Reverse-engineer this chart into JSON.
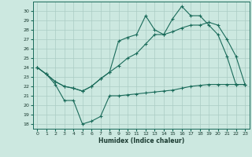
{
  "xlabel": "Humidex (Indice chaleur)",
  "bg_color": "#cce8e0",
  "grid_color": "#aaccc4",
  "line_color": "#1a6b5a",
  "xlim": [
    -0.5,
    23.5
  ],
  "ylim": [
    17.5,
    31.0
  ],
  "xticks": [
    0,
    1,
    2,
    3,
    4,
    5,
    6,
    7,
    8,
    9,
    10,
    11,
    12,
    13,
    14,
    15,
    16,
    17,
    18,
    19,
    20,
    21,
    22,
    23
  ],
  "yticks": [
    18,
    19,
    20,
    21,
    22,
    23,
    24,
    25,
    26,
    27,
    28,
    29,
    30
  ],
  "line_bottom_x": [
    0,
    1,
    2,
    3,
    4,
    5,
    6,
    7,
    8,
    9,
    10,
    11,
    12,
    13,
    14,
    15,
    16,
    17,
    18,
    19,
    20,
    21,
    22,
    23
  ],
  "line_bottom_y": [
    24.0,
    23.3,
    22.2,
    20.5,
    20.5,
    18.0,
    18.3,
    18.8,
    21.0,
    21.0,
    21.1,
    21.2,
    21.3,
    21.4,
    21.5,
    21.6,
    21.8,
    22.0,
    22.1,
    22.2,
    22.2,
    22.2,
    22.2,
    22.2
  ],
  "line_mid_x": [
    0,
    1,
    2,
    3,
    4,
    5,
    6,
    7,
    8,
    9,
    10,
    11,
    12,
    13,
    14,
    15,
    16,
    17,
    18,
    19,
    20,
    21,
    22,
    23
  ],
  "line_mid_y": [
    24.0,
    23.3,
    22.5,
    22.0,
    21.8,
    21.5,
    22.0,
    22.8,
    23.5,
    24.2,
    25.0,
    25.5,
    26.5,
    27.5,
    27.5,
    27.8,
    28.2,
    28.5,
    28.5,
    28.8,
    28.5,
    27.0,
    25.2,
    22.2
  ],
  "line_top_x": [
    0,
    1,
    2,
    3,
    4,
    5,
    6,
    7,
    8,
    9,
    10,
    11,
    12,
    13,
    14,
    15,
    16,
    17,
    18,
    19,
    20,
    21,
    22,
    23
  ],
  "line_top_y": [
    24.0,
    23.3,
    22.5,
    22.0,
    21.8,
    21.5,
    22.0,
    22.8,
    23.5,
    26.8,
    27.2,
    27.5,
    29.5,
    28.0,
    27.5,
    29.2,
    30.5,
    29.5,
    29.5,
    28.5,
    27.5,
    25.2,
    22.2,
    22.2
  ]
}
